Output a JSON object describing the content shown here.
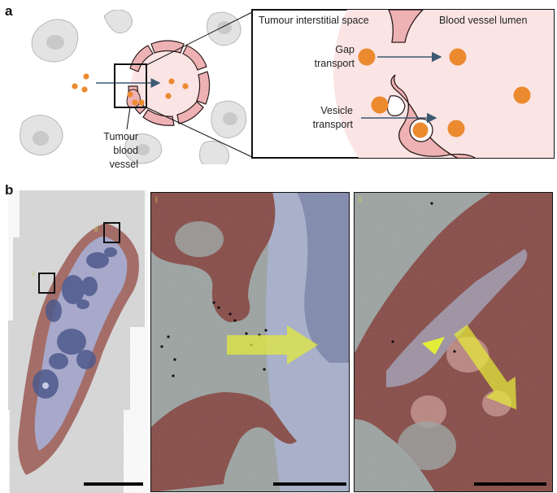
{
  "panels": {
    "a": {
      "letter": "a",
      "inset_caption": "Tumour blood vessel",
      "zoom": {
        "left_region": "Tumour interstitial space",
        "right_region": "Blood vessel lumen",
        "gap_label": "Gap transport",
        "vesicle_label": "Vesicle transport"
      }
    },
    "b": {
      "letter": "b",
      "box_i_label": "i",
      "box_ii_label": "ii",
      "panel_i_label": "i",
      "panel_ii_label": "ii"
    }
  },
  "colors": {
    "endothelium": "#eeb2b4",
    "endothelium_stroke": "#2b1a1a",
    "lumen": "#fbe4e4",
    "particle": "#ec8a2f",
    "arrow": "#3d5a73",
    "em_arrow": "#e4ec3a",
    "em_tissue_red": "#7e3a35",
    "em_lumen_blue": "#a5adcc"
  }
}
